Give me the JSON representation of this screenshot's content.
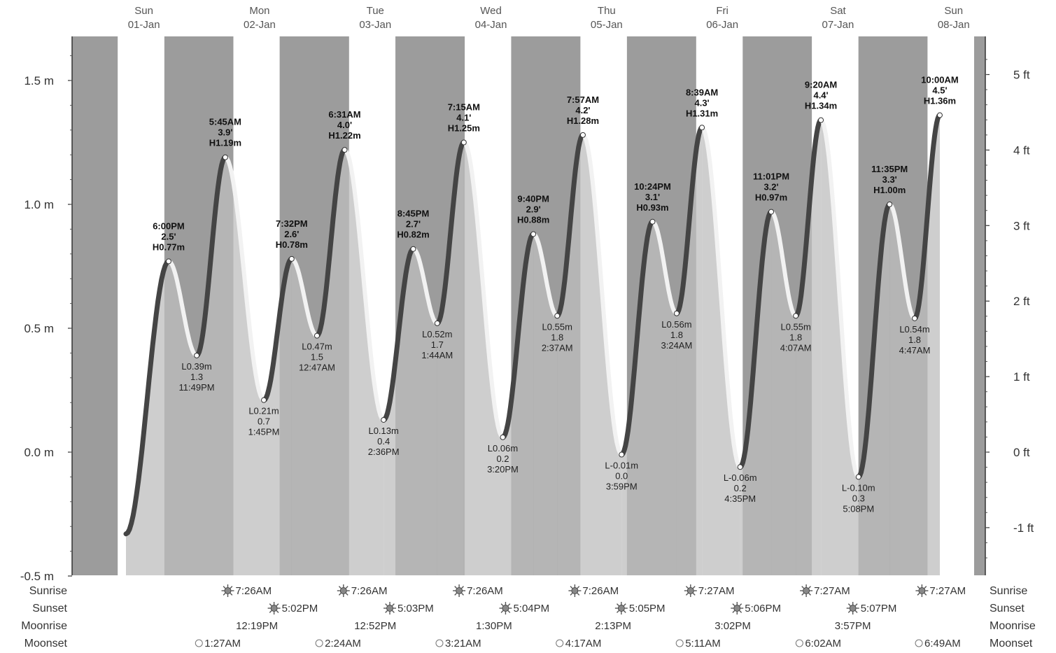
{
  "chart_data": {
    "type": "area",
    "title": "",
    "xlabel": "",
    "ylabel": "",
    "y_left_unit": "m",
    "y_right_unit": "ft",
    "ylim": [
      -0.5,
      1.65
    ],
    "left_ticks": [
      "-0.5 m",
      "0.0 m",
      "0.5 m",
      "1.0 m",
      "1.5 m"
    ],
    "left_tick_values": [
      -0.5,
      0.0,
      0.5,
      1.0,
      1.5
    ],
    "right_ticks": [
      "-1 ft",
      "0 ft",
      "1 ft",
      "2 ft",
      "3 ft",
      "4 ft",
      "5 ft"
    ],
    "right_tick_values": [
      -1,
      0,
      1,
      2,
      3,
      4,
      5
    ],
    "days": [
      {
        "name": "Sun",
        "date": "01-Jan"
      },
      {
        "name": "Mon",
        "date": "02-Jan"
      },
      {
        "name": "Tue",
        "date": "03-Jan"
      },
      {
        "name": "Wed",
        "date": "04-Jan"
      },
      {
        "name": "Thu",
        "date": "05-Jan"
      },
      {
        "name": "Fri",
        "date": "06-Jan"
      },
      {
        "name": "Sat",
        "date": "07-Jan"
      },
      {
        "name": "Sun",
        "date": "08-Jan"
      }
    ],
    "tides": [
      {
        "type": "H",
        "time": "6:00PM",
        "ft": "2.5'",
        "m": "H0.77m",
        "day": 0,
        "hour": 18.0,
        "height": 0.77
      },
      {
        "type": "L",
        "time": "11:49PM",
        "ft": "1.3",
        "m": "L0.39m",
        "day": 0,
        "hour": 23.82,
        "height": 0.39
      },
      {
        "type": "H",
        "time": "5:45AM",
        "ft": "3.9'",
        "m": "H1.19m",
        "day": 1,
        "hour": 5.75,
        "height": 1.19
      },
      {
        "type": "L",
        "time": "1:45PM",
        "ft": "0.7",
        "m": "L0.21m",
        "day": 1,
        "hour": 13.75,
        "height": 0.21
      },
      {
        "type": "H",
        "time": "7:32PM",
        "ft": "2.6'",
        "m": "H0.78m",
        "day": 1,
        "hour": 19.53,
        "height": 0.78
      },
      {
        "type": "L",
        "time": "12:47AM",
        "ft": "1.5",
        "m": "L0.47m",
        "day": 2,
        "hour": 0.78,
        "height": 0.47
      },
      {
        "type": "H",
        "time": "6:31AM",
        "ft": "4.0'",
        "m": "H1.22m",
        "day": 2,
        "hour": 6.52,
        "height": 1.22
      },
      {
        "type": "L",
        "time": "2:36PM",
        "ft": "0.4",
        "m": "L0.13m",
        "day": 2,
        "hour": 14.6,
        "height": 0.13
      },
      {
        "type": "H",
        "time": "8:45PM",
        "ft": "2.7'",
        "m": "H0.82m",
        "day": 2,
        "hour": 20.75,
        "height": 0.82
      },
      {
        "type": "L",
        "time": "1:44AM",
        "ft": "1.7",
        "m": "L0.52m",
        "day": 3,
        "hour": 1.73,
        "height": 0.52
      },
      {
        "type": "H",
        "time": "7:15AM",
        "ft": "4.1'",
        "m": "H1.25m",
        "day": 3,
        "hour": 7.25,
        "height": 1.25
      },
      {
        "type": "L",
        "time": "3:20PM",
        "ft": "0.2",
        "m": "L0.06m",
        "day": 3,
        "hour": 15.33,
        "height": 0.06
      },
      {
        "type": "H",
        "time": "9:40PM",
        "ft": "2.9'",
        "m": "H0.88m",
        "day": 3,
        "hour": 21.67,
        "height": 0.88
      },
      {
        "type": "L",
        "time": "2:37AM",
        "ft": "1.8",
        "m": "L0.55m",
        "day": 4,
        "hour": 2.62,
        "height": 0.55
      },
      {
        "type": "H",
        "time": "7:57AM",
        "ft": "4.2'",
        "m": "H1.28m",
        "day": 4,
        "hour": 7.95,
        "height": 1.28
      },
      {
        "type": "L",
        "time": "3:59PM",
        "ft": "0.0",
        "m": "L-0.01m",
        "day": 4,
        "hour": 15.98,
        "height": -0.01
      },
      {
        "type": "H",
        "time": "10:24PM",
        "ft": "3.1'",
        "m": "H0.93m",
        "day": 4,
        "hour": 22.4,
        "height": 0.93
      },
      {
        "type": "L",
        "time": "3:24AM",
        "ft": "1.8",
        "m": "L0.56m",
        "day": 5,
        "hour": 3.4,
        "height": 0.56
      },
      {
        "type": "H",
        "time": "8:39AM",
        "ft": "4.3'",
        "m": "H1.31m",
        "day": 5,
        "hour": 8.65,
        "height": 1.31
      },
      {
        "type": "L",
        "time": "4:35PM",
        "ft": "0.2",
        "m": "L-0.06m",
        "day": 5,
        "hour": 16.58,
        "height": -0.06
      },
      {
        "type": "H",
        "time": "11:01PM",
        "ft": "3.2'",
        "m": "H0.97m",
        "day": 5,
        "hour": 23.02,
        "height": 0.97
      },
      {
        "type": "L",
        "time": "4:07AM",
        "ft": "1.8",
        "m": "L0.55m",
        "day": 6,
        "hour": 4.12,
        "height": 0.55
      },
      {
        "type": "H",
        "time": "9:20AM",
        "ft": "4.4'",
        "m": "H1.34m",
        "day": 6,
        "hour": 9.33,
        "height": 1.34
      },
      {
        "type": "L",
        "time": "5:08PM",
        "ft": "0.3",
        "m": "L-0.10m",
        "day": 6,
        "hour": 17.13,
        "height": -0.1
      },
      {
        "type": "H",
        "time": "11:35PM",
        "ft": "3.3'",
        "m": "H1.00m",
        "day": 6,
        "hour": 23.58,
        "height": 1.0
      },
      {
        "type": "L",
        "time": "4:47AM",
        "ft": "1.8",
        "m": "L0.54m",
        "day": 7,
        "hour": 4.78,
        "height": 0.54
      },
      {
        "type": "H",
        "time": "10:00AM",
        "ft": "4.5'",
        "m": "H1.36m",
        "day": 7,
        "hour": 10.0,
        "height": 1.36
      }
    ],
    "rows": {
      "sunrise": {
        "label": "Sunrise",
        "entries": [
          {
            "day": 1,
            "time": "7:26AM"
          },
          {
            "day": 2,
            "time": "7:26AM"
          },
          {
            "day": 3,
            "time": "7:26AM"
          },
          {
            "day": 4,
            "time": "7:26AM"
          },
          {
            "day": 5,
            "time": "7:27AM"
          },
          {
            "day": 6,
            "time": "7:27AM"
          },
          {
            "day": 7,
            "time": "7:27AM"
          }
        ]
      },
      "sunset": {
        "label": "Sunset",
        "entries": [
          {
            "day": 1,
            "time": "5:02PM"
          },
          {
            "day": 2,
            "time": "5:03PM"
          },
          {
            "day": 3,
            "time": "5:04PM"
          },
          {
            "day": 4,
            "time": "5:05PM"
          },
          {
            "day": 5,
            "time": "5:06PM"
          },
          {
            "day": 6,
            "time": "5:07PM"
          }
        ]
      },
      "moonrise": {
        "label": "Moonrise",
        "entries": [
          {
            "day": 1,
            "time": "12:19PM"
          },
          {
            "day": 2,
            "time": "12:52PM"
          },
          {
            "day": 3,
            "time": "1:30PM"
          },
          {
            "day": 4,
            "time": "2:13PM"
          },
          {
            "day": 5,
            "time": "3:02PM"
          },
          {
            "day": 6,
            "time": "3:57PM"
          }
        ]
      },
      "moonset": {
        "label": "Moonset",
        "entries": [
          {
            "day": 1,
            "time": "1:27AM"
          },
          {
            "day": 2,
            "time": "2:24AM"
          },
          {
            "day": 3,
            "time": "3:21AM"
          },
          {
            "day": 4,
            "time": "4:17AM"
          },
          {
            "day": 5,
            "time": "5:11AM"
          },
          {
            "day": 6,
            "time": "6:02AM"
          },
          {
            "day": 7,
            "time": "6:49AM"
          }
        ]
      }
    },
    "colors": {
      "night": "#9c9c9c",
      "day": "#ffffff",
      "water_night": "#b3b3b3",
      "water_day": "#c9c9c9",
      "rising": "#444444",
      "falling": "#f2f2f2"
    }
  }
}
